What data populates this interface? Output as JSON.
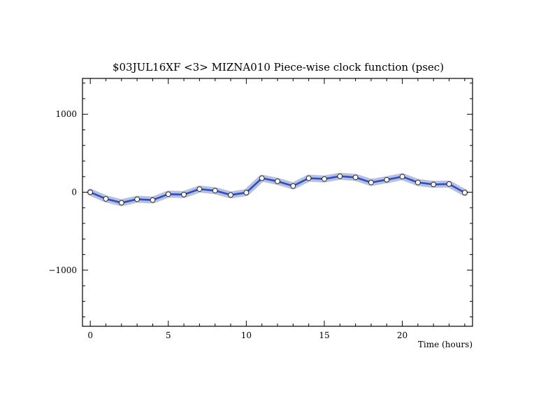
{
  "chart_data": {
    "type": "line",
    "title": "$03JUL16XF <3>  MIZNA010  Piece-wise clock function (psec)",
    "xlabel": "Time (hours)",
    "ylabel": "",
    "xlim": [
      -0.5,
      24.5
    ],
    "ylim": [
      -1720,
      1460
    ],
    "xticks": [
      0,
      5,
      10,
      15,
      20
    ],
    "xtick_labels": [
      "0",
      "5",
      "10",
      "15",
      "20"
    ],
    "yticks": [
      -1000,
      0,
      1000
    ],
    "ytick_labels": [
      "−1000",
      "0",
      "1000"
    ],
    "grid": false,
    "colors": {
      "line": "#2b4fc4",
      "band": "#b8c0dc",
      "marker_fill": "#ffffff"
    },
    "series": [
      {
        "x": [
          0,
          1,
          2,
          3,
          4,
          5,
          6,
          7,
          8,
          9,
          10,
          11,
          12,
          13,
          14,
          15,
          16,
          17,
          18,
          19,
          20,
          21,
          22,
          23,
          24
        ],
        "values": [
          0,
          -85,
          -135,
          -90,
          -100,
          -25,
          -30,
          40,
          20,
          -35,
          -5,
          180,
          140,
          80,
          180,
          170,
          205,
          190,
          125,
          160,
          200,
          125,
          100,
          105,
          -5
        ],
        "band": 45
      }
    ]
  }
}
